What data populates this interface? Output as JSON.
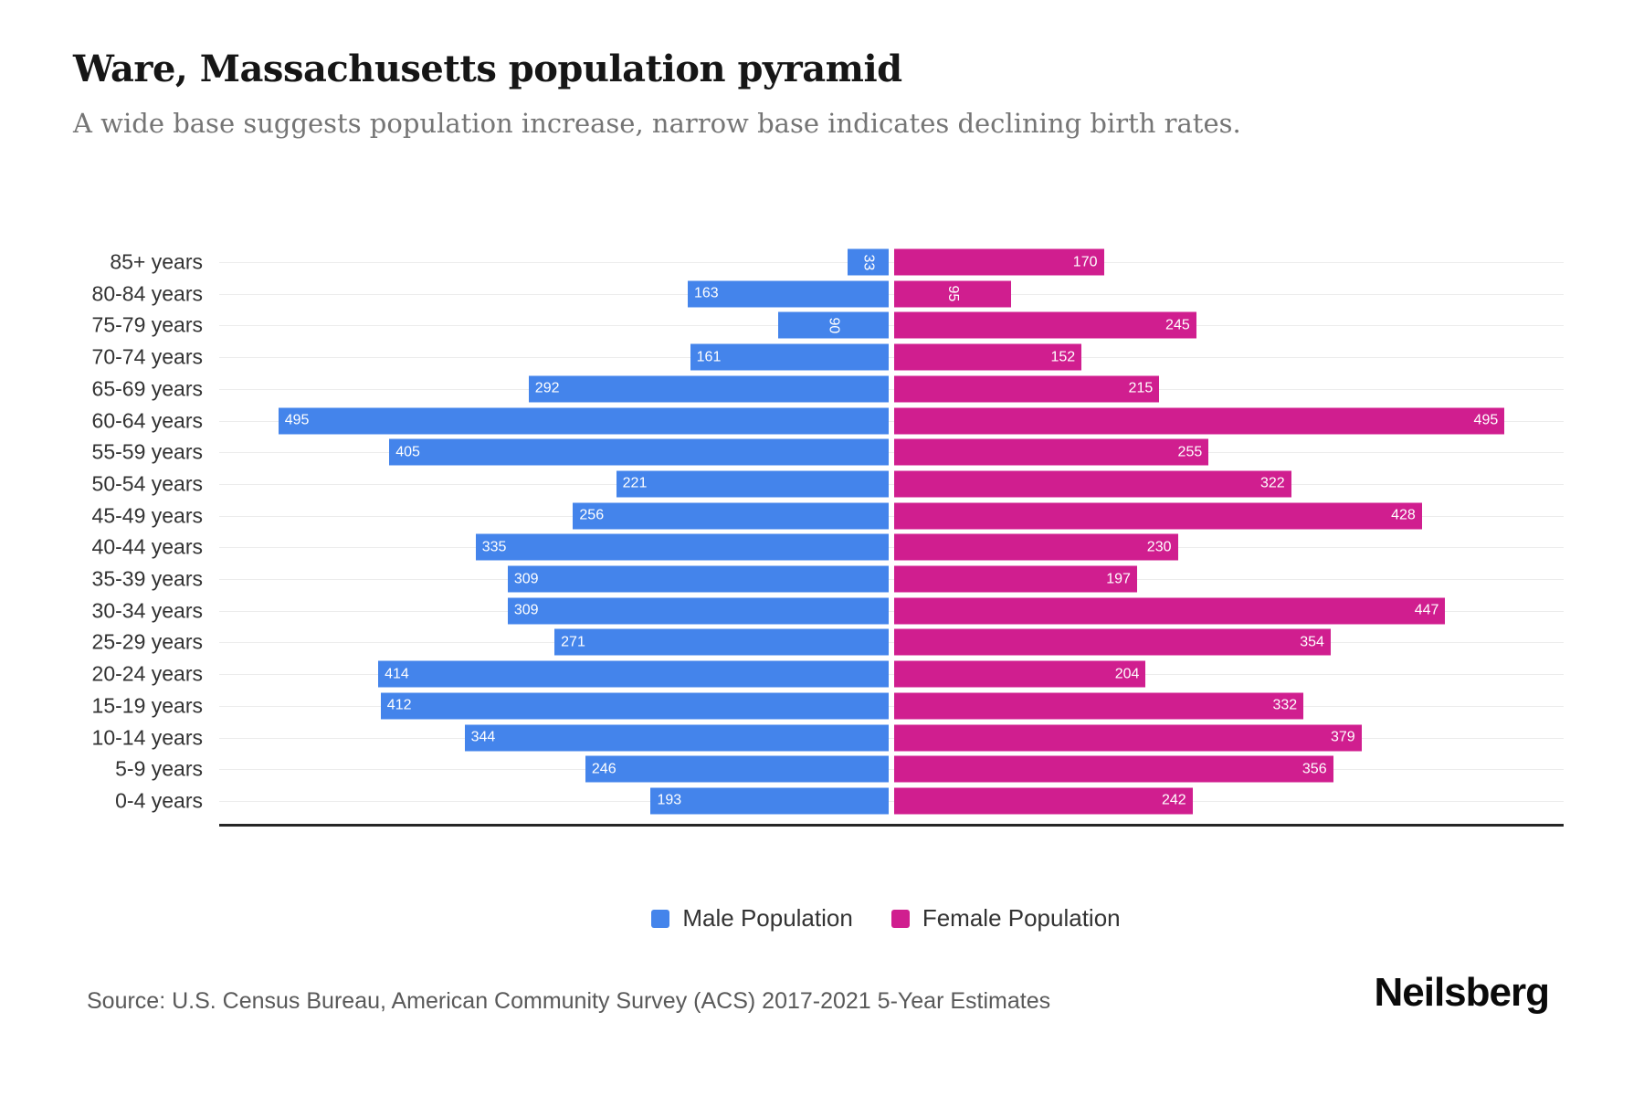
{
  "header": {
    "title": "Ware, Massachusetts population pyramid",
    "subtitle": "A wide base suggests population increase, narrow base indicates declining birth rates."
  },
  "chart_data": {
    "type": "bar",
    "variant": "population-pyramid",
    "categories": [
      "85+ years",
      "80-84 years",
      "75-79 years",
      "70-74 years",
      "65-69 years",
      "60-64 years",
      "55-59 years",
      "50-54 years",
      "45-49 years",
      "40-44 years",
      "35-39 years",
      "30-34 years",
      "25-29 years",
      "20-24 years",
      "15-19 years",
      "10-14 years",
      "5-9 years",
      "0-4 years"
    ],
    "series": [
      {
        "name": "Male Population",
        "color": "#4484EB",
        "values": [
          33,
          163,
          90,
          161,
          292,
          495,
          405,
          221,
          256,
          335,
          309,
          309,
          271,
          414,
          412,
          344,
          246,
          193
        ]
      },
      {
        "name": "Female Population",
        "color": "#D01E8F",
        "values": [
          170,
          95,
          245,
          152,
          215,
          495,
          255,
          322,
          428,
          230,
          197,
          447,
          354,
          204,
          332,
          379,
          356,
          242
        ]
      }
    ],
    "xlim_each_side": [
      0,
      555
    ],
    "grid": true,
    "legend_position": "bottom",
    "value_labels": "inside-outer-end, rotated vertically when value < 100"
  },
  "legend": {
    "male_label": "Male Population",
    "female_label": "Female Population"
  },
  "footer": {
    "source": "Source: U.S. Census Bureau, American Community Survey (ACS) 2017-2021 5-Year Estimates",
    "brand": "Neilsberg"
  },
  "colors": {
    "male": "#4484EB",
    "female": "#D01E8F",
    "gridline": "#ececec",
    "axis": "#262626",
    "title": "#161616",
    "subtitle": "#757575",
    "axis_label": "#333333",
    "source_text": "#595959"
  }
}
